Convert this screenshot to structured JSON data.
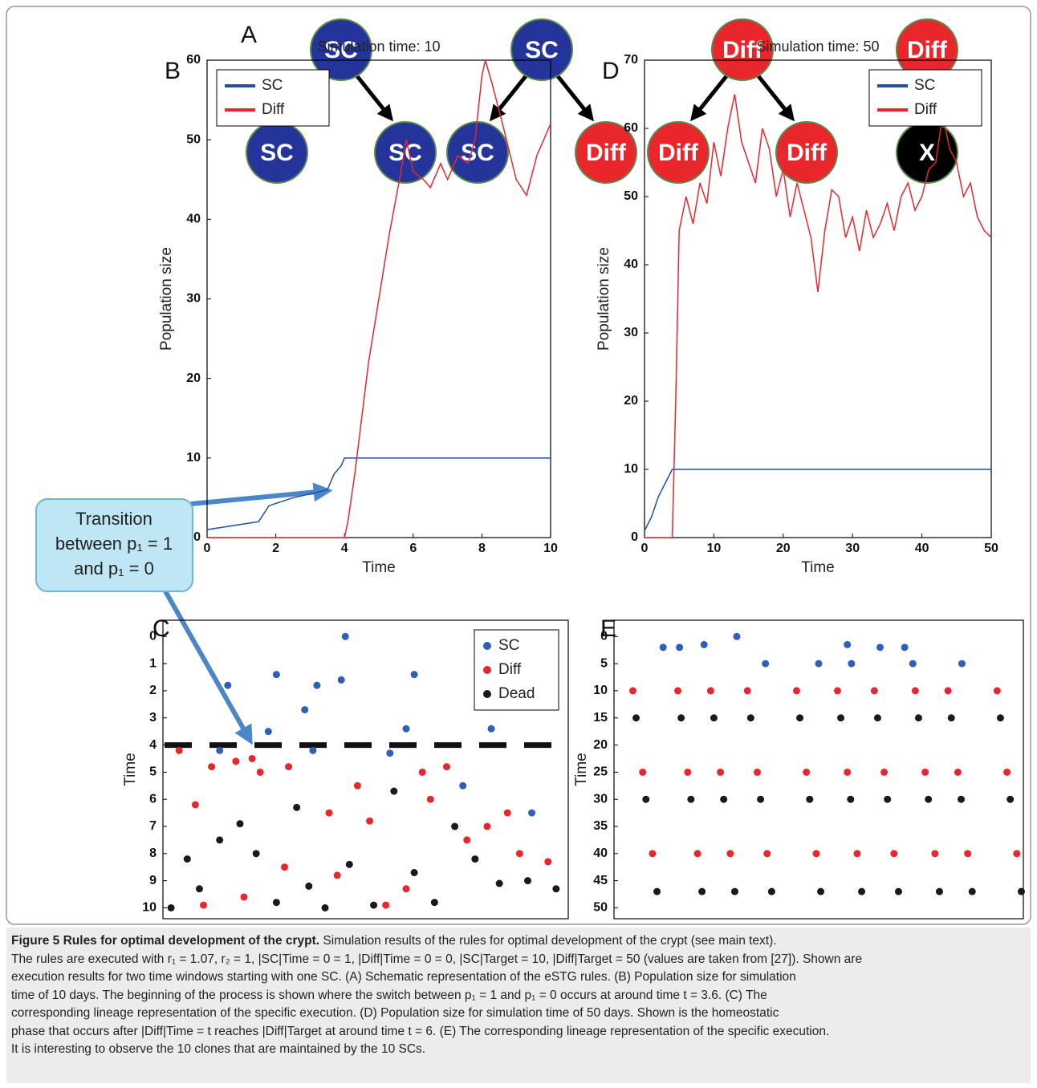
{
  "panel_labels": [
    "A",
    "B",
    "C",
    "D",
    "E"
  ],
  "diagram": {
    "nodes": [
      {
        "label": "SC"
      },
      {
        "label": "SC"
      },
      {
        "label": "SC"
      },
      {
        "label": "SC"
      },
      {
        "label": "SC"
      },
      {
        "label": "Diff"
      },
      {
        "label": "Diff"
      },
      {
        "label": "Diff"
      },
      {
        "label": "Diff"
      },
      {
        "label": "Diff"
      },
      {
        "label": "X"
      }
    ]
  },
  "callout": {
    "lines": [
      "Transition",
      "between p₁ = 1",
      "and p₁ = 0"
    ]
  },
  "chart_data": [
    {
      "type": "line",
      "title": "Simulation time: 10",
      "x_label": "Time",
      "y_label": "Population size",
      "legend": "upper left",
      "xlim": [
        0,
        10
      ],
      "ylim": [
        0,
        60
      ],
      "xticks": [
        0,
        2,
        4,
        6,
        8,
        10
      ],
      "yticks": [
        0,
        10,
        20,
        30,
        40,
        50,
        60
      ],
      "series": [
        {
          "name": "SC",
          "color": "#1f4fa8",
          "x": [
            0,
            1.5,
            1.8,
            2.5,
            3.5,
            3.7,
            3.9,
            4.0,
            10
          ],
          "values": [
            1,
            2,
            4,
            5,
            6,
            8,
            9,
            10,
            10
          ]
        },
        {
          "name": "Diff",
          "color": "#e8262b",
          "x": [
            0,
            4,
            4.1,
            4.3,
            4.5,
            4.7,
            5,
            5.3,
            5.6,
            5.8,
            6,
            6.3,
            6.5,
            6.8,
            7,
            7.3,
            7.6,
            7.8,
            8,
            8.1,
            8.3,
            8.6,
            9,
            9.3,
            9.6,
            10
          ],
          "values": [
            0,
            0,
            2,
            8,
            15,
            22,
            30,
            38,
            45,
            50,
            46,
            45,
            44,
            47,
            45,
            48,
            47,
            50,
            58,
            60,
            57,
            52,
            45,
            43,
            48,
            52
          ]
        }
      ]
    },
    {
      "type": "line",
      "title": "Simulation time: 50",
      "x_label": "Time",
      "y_label": "Population size",
      "legend": "upper right",
      "xlim": [
        0,
        50
      ],
      "ylim": [
        0,
        70
      ],
      "xticks": [
        0,
        10,
        20,
        30,
        40,
        50
      ],
      "yticks": [
        0,
        10,
        20,
        30,
        40,
        50,
        60,
        70
      ],
      "series": [
        {
          "name": "SC",
          "color": "#1f4fa8",
          "x": [
            0,
            1,
            2,
            3,
            4,
            50
          ],
          "values": [
            1,
            3,
            6,
            8,
            10,
            10
          ]
        },
        {
          "name": "Diff",
          "color": "#e8262b",
          "x": [
            0,
            4,
            4.5,
            5,
            6,
            7,
            8,
            9,
            10,
            11,
            12,
            13,
            14,
            15,
            16,
            17,
            18,
            19,
            20,
            21,
            22,
            23,
            24,
            25,
            26,
            27,
            28,
            29,
            30,
            31,
            32,
            33,
            34,
            35,
            36,
            37,
            38,
            39,
            40,
            41,
            42,
            43,
            44,
            45,
            46,
            47,
            48,
            49,
            50
          ],
          "values": [
            0,
            0,
            20,
            45,
            50,
            46,
            52,
            49,
            58,
            53,
            60,
            65,
            58,
            55,
            52,
            60,
            57,
            50,
            54,
            47,
            52,
            48,
            44,
            36,
            45,
            51,
            50,
            44,
            47,
            42,
            48,
            44,
            46,
            49,
            45,
            50,
            52,
            48,
            50,
            54,
            55,
            62,
            57,
            55,
            50,
            52,
            47,
            45,
            44
          ]
        }
      ]
    },
    {
      "type": "scatter",
      "y_label": "Time",
      "legend": "upper right",
      "xlim": [
        0,
        100
      ],
      "ylim": [
        10.4,
        -0.6
      ],
      "yticks": [
        0,
        1,
        2,
        3,
        4,
        5,
        6,
        7,
        8,
        9,
        10
      ],
      "series": [
        {
          "name": "SC",
          "color": "#2f5fb8",
          "x": [
            45,
            28,
            62,
            16,
            38,
            44,
            78,
            35,
            26,
            60,
            81,
            37,
            14,
            56,
            91,
            74
          ],
          "values": [
            0,
            1.4,
            1.4,
            1.8,
            1.8,
            1.6,
            1.6,
            2.7,
            3.5,
            3.4,
            3.4,
            4.2,
            4.2,
            4.3,
            6.5,
            5.5
          ]
        },
        {
          "name": "Diff",
          "color": "#e8262b",
          "x": [
            4,
            8,
            12,
            18,
            22,
            24,
            31,
            41,
            48,
            43,
            55,
            64,
            66,
            70,
            75,
            80,
            85,
            88,
            95,
            10,
            30,
            20,
            51,
            60
          ],
          "values": [
            4.2,
            6.2,
            4.8,
            4.6,
            4.5,
            5,
            4.8,
            6.5,
            5.5,
            8.8,
            9.9,
            5,
            6,
            4.8,
            7.5,
            7,
            6.5,
            8,
            8.3,
            9.9,
            8.5,
            9.6,
            6.8,
            9.3
          ]
        },
        {
          "name": "Dead",
          "color": "#1a1a1a",
          "x": [
            2,
            6,
            9,
            14,
            19,
            23,
            28,
            33,
            36,
            40,
            46,
            52,
            57,
            62,
            67,
            72,
            77,
            83,
            90,
            97
          ],
          "values": [
            10,
            8.2,
            9.3,
            7.5,
            6.9,
            8,
            9.8,
            6.3,
            9.2,
            10,
            8.4,
            9.9,
            5.7,
            8.7,
            9.8,
            7,
            8.2,
            9.1,
            9,
            9.3
          ]
        }
      ]
    },
    {
      "type": "scatter",
      "y_label": "Time",
      "xlim": [
        0,
        100
      ],
      "ylim": [
        52,
        -3
      ],
      "yticks": [
        0,
        5,
        10,
        15,
        20,
        25,
        30,
        35,
        40,
        45,
        50
      ],
      "series": [
        {
          "name": "SC",
          "color": "#2f5fb8",
          "x": [
            30,
            12,
            16,
            22,
            57,
            65,
            71,
            58,
            37,
            50,
            73,
            85
          ],
          "values": [
            0,
            2,
            2,
            1.5,
            1.5,
            2,
            2,
            5,
            5,
            5,
            5,
            5
          ]
        },
        {
          "name": "Diff",
          "color": "#e8262b",
          "x": [
            4.6,
            15.6,
            23.6,
            32.6,
            44.6,
            54.6,
            63.6,
            73.6,
            81.6,
            93.6,
            7,
            18,
            26,
            35,
            47,
            57,
            66,
            76,
            84,
            96,
            9.4,
            20.4,
            28.4,
            37.4,
            49.4,
            59.4,
            68.4,
            78.4,
            86.4,
            98.4
          ],
          "values": [
            10,
            10,
            10,
            10,
            10,
            10,
            10,
            10,
            10,
            10,
            25,
            25,
            25,
            25,
            25,
            25,
            25,
            25,
            25,
            25,
            40,
            40,
            40,
            40,
            40,
            40,
            40,
            40,
            40,
            40
          ]
        },
        {
          "name": "Dead",
          "color": "#1a1a1a",
          "x": [
            5.4,
            16.4,
            24.4,
            33.4,
            45.4,
            55.4,
            64.4,
            74.4,
            82.4,
            94.4,
            7.8,
            18.8,
            26.8,
            35.8,
            47.8,
            57.8,
            66.8,
            76.8,
            84.8,
            96.8,
            10.5,
            21.5,
            29.5,
            38.5,
            50.5,
            60.5,
            69.5,
            79.5,
            87.5,
            99.5
          ],
          "values": [
            15,
            15,
            15,
            15,
            15,
            15,
            15,
            15,
            15,
            15,
            30,
            30,
            30,
            30,
            30,
            30,
            30,
            30,
            30,
            30,
            47,
            47,
            47,
            47,
            47,
            47,
            47,
            47,
            47,
            47
          ]
        }
      ]
    }
  ],
  "caption": {
    "title": "Figure 5 Rules for optimal development of the crypt.",
    "lines": [
      "Simulation results of the rules for optimal development of the crypt (see main text).",
      "The rules are executed with r₁ = 1.07, r₂ = 1, |SC|Time = 0 = 1, |Diff|Time = 0 = 0, |SC|Target = 10, |Diff|Target = 50 (values are taken from [27]). Shown are",
      "execution results for two time windows starting with one SC. (A) Schematic representation of the eSTG rules. (B) Population size for simulation",
      "time of 10 days. The beginning of the process is shown where the switch between p₁ = 1 and p₁ = 0 occurs at around time t = 3.6. (C) The",
      "corresponding lineage representation of the specific execution. (D) Population size for simulation time of 50 days. Shown is the homeostatic",
      "phase that occurs after |Diff|Time = t reaches |Diff|Target at around time t = 6. (E) The corresponding lineage representation of the specific execution.",
      "It is interesting to observe the 10 clones that are maintained by the 10 SCs."
    ]
  }
}
